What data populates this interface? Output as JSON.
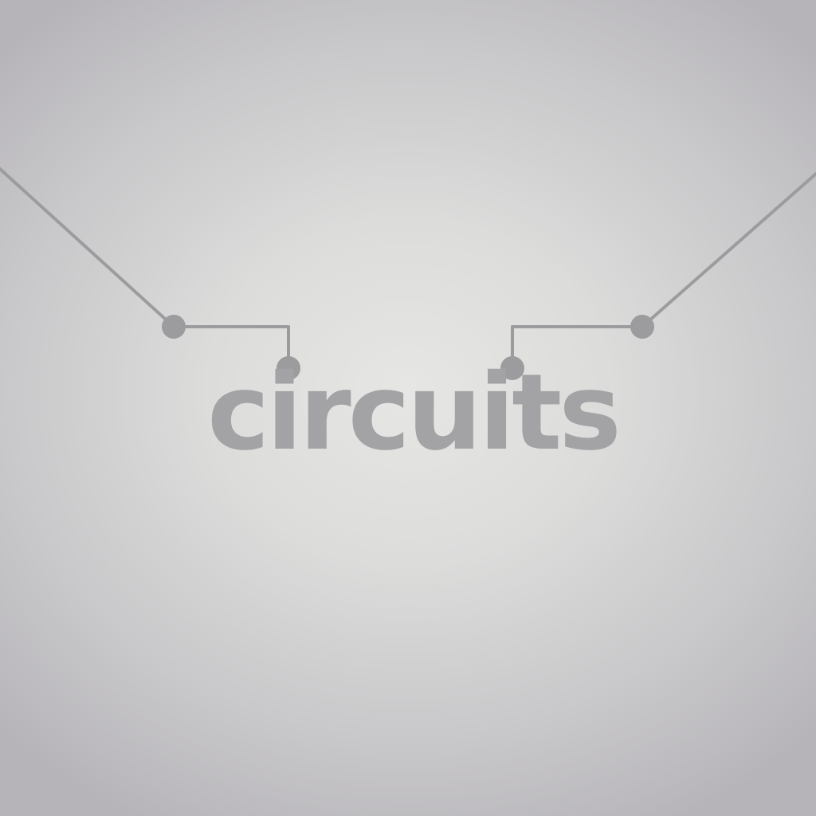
{
  "title_screen": {
    "logo_text": "circuits"
  },
  "colors": {
    "background_center": "#e6e6e4",
    "background_edge": "#b6b4b9",
    "wire": "#9c9c9f",
    "node": "#9c9c9f",
    "logo_text": "#a3a3a6"
  }
}
